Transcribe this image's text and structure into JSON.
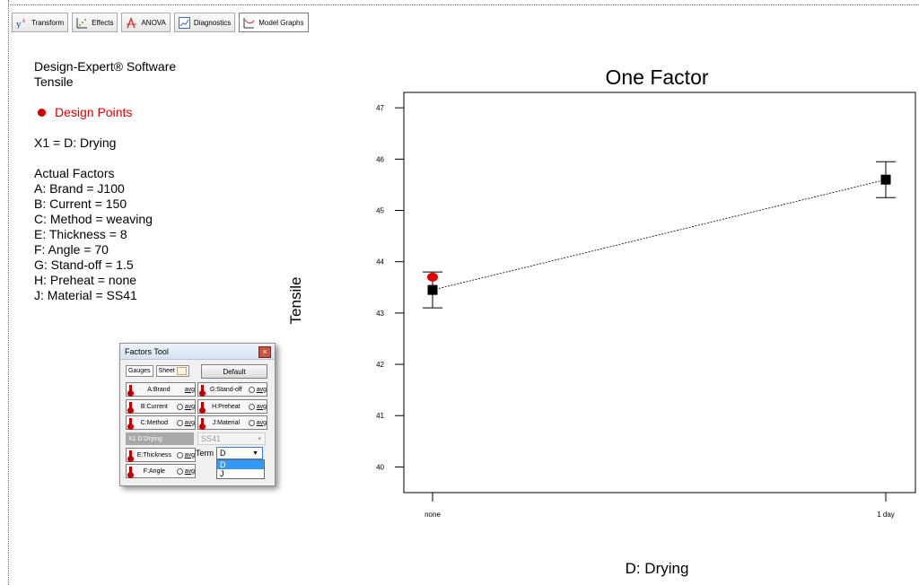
{
  "toolbar": {
    "tabs": [
      {
        "label": "Transform",
        "icon": "y-lambda-icon"
      },
      {
        "label": "Effects",
        "icon": "effects-icon"
      },
      {
        "label": "ANOVA",
        "icon": "anova-icon"
      },
      {
        "label": "Diagnostics",
        "icon": "diagnostics-icon"
      },
      {
        "label": "Model Graphs",
        "icon": "model-graphs-icon",
        "active": true
      }
    ]
  },
  "legend": {
    "software": "Design-Expert® Software",
    "response": "Tensile",
    "design_points": "Design Points",
    "x1": "X1 = D: Drying",
    "actual_factors_title": "Actual Factors",
    "factors": [
      "A: Brand = J100",
      "B: Current = 150",
      "C: Method = weaving",
      "E: Thickness = 8",
      "F: Angle = 70",
      "G: Stand-off = 1.5",
      "H: Preheat = none",
      "J: Material = SS41"
    ]
  },
  "factors_tool": {
    "title": "Factors Tool",
    "gauges_label": "Gauges",
    "sheet_label": "Sheet",
    "default_label": "Default",
    "avg_label": "avg",
    "left_factors": [
      "A:Brand",
      "B:Current",
      "C:Method"
    ],
    "right_factors": [
      "G:Stand-off",
      "H:Preheat",
      "J:Material"
    ],
    "drying_label": "X1  D:Drying",
    "drying_value": "SS41",
    "lower_factors": [
      "E:Thickness",
      "F:Angle"
    ],
    "term_label": "Term",
    "term_value": "D",
    "term_options": [
      "D",
      "J"
    ]
  },
  "chart_data": {
    "type": "line",
    "title": "One Factor",
    "xlabel": "D: Drying",
    "ylabel": "Tensile",
    "categories": [
      "none",
      "1 day"
    ],
    "ylim": [
      39.5,
      47.3
    ],
    "yticks": [
      40,
      41,
      42,
      43,
      44,
      45,
      46,
      47
    ],
    "series": [
      {
        "values": [
          43.45,
          45.6
        ],
        "ci_low": [
          43.1,
          45.25
        ],
        "ci_high": [
          43.8,
          45.95
        ],
        "color": "#000000"
      }
    ],
    "design_points": [
      {
        "x": "none",
        "y": 43.7,
        "color": "#e00000"
      }
    ]
  }
}
